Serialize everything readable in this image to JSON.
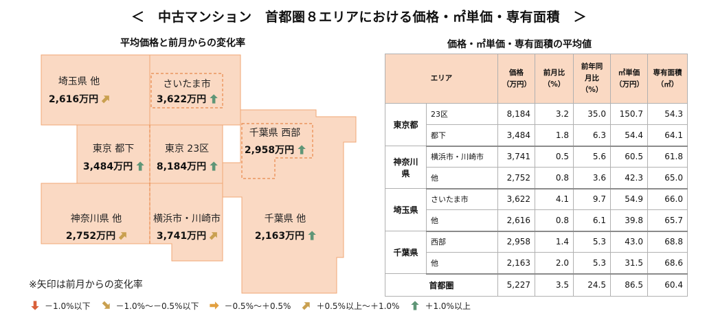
{
  "title": "＜　中古マンション　首都圏８エリアにおける価格・㎡単価・専有面積　＞",
  "left_title": "平均価格と前月からの変化率",
  "right_title": "価格・㎡単価・専有面積の平均値",
  "colors": {
    "map_fill": "#fad9c3",
    "map_stroke": "#f0a774",
    "header_fill": "#fad9c3",
    "arrow_down": "#d9603a",
    "arrow_down_slight": "#c9a050",
    "arrow_flat": "#e2a040",
    "arrow_up_slight": "#c9a050",
    "arrow_up": "#5f9677"
  },
  "chart_data": {
    "type": "table",
    "map_regions": [
      {
        "id": "saitama-other",
        "name": "埼玉県 他",
        "price": "2,616万円",
        "trend": "up-slight"
      },
      {
        "id": "saitama-city",
        "name": "さいたま市",
        "price": "3,622万円",
        "trend": "up"
      },
      {
        "id": "tokyo-suburb",
        "name": "東京 都下",
        "price": "3,484万円",
        "trend": "up"
      },
      {
        "id": "tokyo-23",
        "name": "東京 23区",
        "price": "8,184万円",
        "trend": "up"
      },
      {
        "id": "chiba-west",
        "name": "千葉県 西部",
        "price": "2,958万円",
        "trend": "up"
      },
      {
        "id": "kanagawa-other",
        "name": "神奈川県 他",
        "price": "2,752万円",
        "trend": "up-slight"
      },
      {
        "id": "yokohama-kawasaki",
        "name": "横浜市・川崎市",
        "price": "3,741万円",
        "trend": "up-slight"
      },
      {
        "id": "chiba-other",
        "name": "千葉県 他",
        "price": "2,163万円",
        "trend": "up"
      }
    ],
    "table": {
      "area_header": "エリア",
      "columns": [
        {
          "l1": "価格",
          "l2": "（万円）"
        },
        {
          "l1": "前月比",
          "l2": "（%）"
        },
        {
          "l1": "前年同月比",
          "l2": "（%）"
        },
        {
          "l1": "㎡単価",
          "l2": "（万円）"
        },
        {
          "l1": "専有面積",
          "l2": "（㎡）"
        }
      ],
      "groups": [
        {
          "area": "東京都",
          "rows": [
            {
              "sub": "23区",
              "values": [
                "8,184",
                "3.2",
                "35.0",
                "150.7",
                "54.3"
              ]
            },
            {
              "sub": "都下",
              "values": [
                "3,484",
                "1.8",
                "6.3",
                "54.4",
                "64.1"
              ]
            }
          ]
        },
        {
          "area": "神奈川県",
          "rows": [
            {
              "sub": "横浜市・川崎市",
              "values": [
                "3,741",
                "0.5",
                "5.6",
                "60.5",
                "61.8"
              ]
            },
            {
              "sub": "他",
              "values": [
                "2,752",
                "0.8",
                "3.6",
                "42.3",
                "65.0"
              ]
            }
          ]
        },
        {
          "area": "埼玉県",
          "rows": [
            {
              "sub": "さいたま市",
              "values": [
                "3,622",
                "4.1",
                "9.7",
                "54.9",
                "66.0"
              ]
            },
            {
              "sub": "他",
              "values": [
                "2,616",
                "0.8",
                "6.1",
                "39.8",
                "65.7"
              ]
            }
          ]
        },
        {
          "area": "千葉県",
          "rows": [
            {
              "sub": "西部",
              "values": [
                "2,958",
                "1.4",
                "5.3",
                "43.0",
                "68.8"
              ]
            },
            {
              "sub": "他",
              "values": [
                "2,163",
                "2.0",
                "5.3",
                "31.5",
                "68.6"
              ]
            }
          ]
        }
      ],
      "total": {
        "label": "首都圏",
        "values": [
          "5,227",
          "3.5",
          "24.5",
          "86.5",
          "60.4"
        ]
      }
    }
  },
  "note": "※矢印は前月からの変化率",
  "legend": [
    {
      "trend": "down",
      "label": "－1.0%以下"
    },
    {
      "trend": "down-slight",
      "label": "－1.0%～－0.5%以下"
    },
    {
      "trend": "flat",
      "label": "－0.5%～＋0.5%"
    },
    {
      "trend": "up-slight",
      "label": "＋0.5%以上～＋1.0%"
    },
    {
      "trend": "up",
      "label": "＋1.0%以上"
    }
  ]
}
